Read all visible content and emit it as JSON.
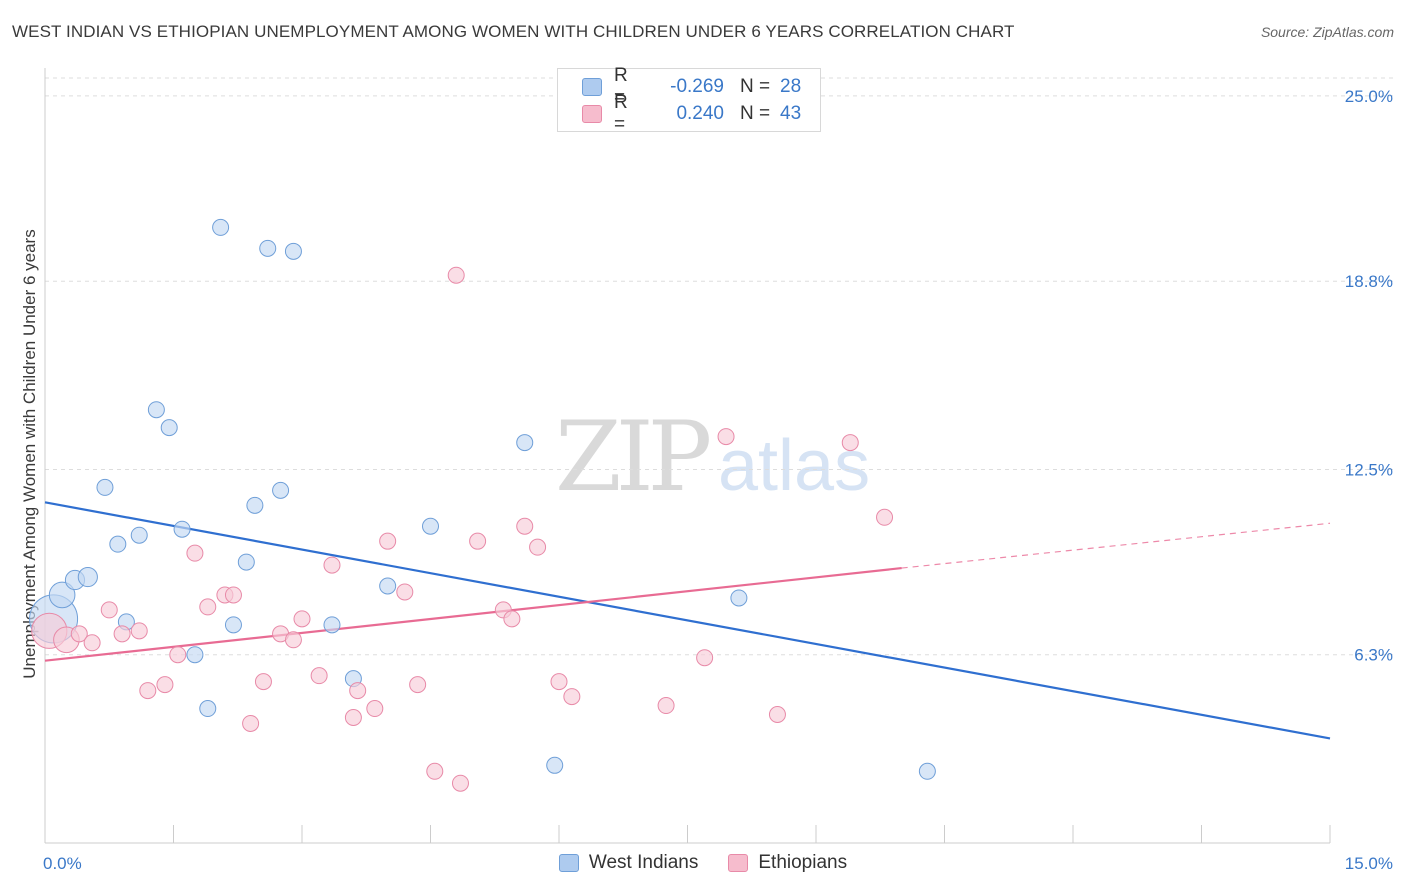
{
  "title": "WEST INDIAN VS ETHIOPIAN UNEMPLOYMENT AMONG WOMEN WITH CHILDREN UNDER 6 YEARS CORRELATION CHART",
  "source": "Source: ZipAtlas.com",
  "watermark": {
    "zip": "ZIP",
    "atlas": "atlas"
  },
  "legend": {
    "rows": [
      {
        "r_label": "R =",
        "r_value": "-0.269",
        "n_label": "N =",
        "n_value": "28",
        "color": "#aecbef",
        "border": "#6f9fd8"
      },
      {
        "r_label": "R =",
        "r_value": "0.240",
        "n_label": "N =",
        "n_value": "43",
        "color": "#f6bccd",
        "border": "#e88aa8"
      }
    ]
  },
  "bottom_legend": [
    {
      "label": "West Indians",
      "color": "#aecbef",
      "border": "#6f9fd8"
    },
    {
      "label": "Ethiopians",
      "color": "#f6bccd",
      "border": "#e88aa8"
    }
  ],
  "chart_data": {
    "type": "scatter",
    "title": "WEST INDIAN VS ETHIOPIAN UNEMPLOYMENT AMONG WOMEN WITH CHILDREN UNDER 6 YEARS CORRELATION CHART",
    "xlabel": "",
    "ylabel": "Unemployment Among Women with Children Under 6 years",
    "xlim": [
      0,
      15
    ],
    "ylim": [
      0,
      25.6
    ],
    "x_tick_labels": [
      "0.0%",
      "15.0%"
    ],
    "y_ticks": [
      6.3,
      12.5,
      18.8,
      25.0
    ],
    "y_tick_labels": [
      "6.3%",
      "12.5%",
      "18.8%",
      "25.0%"
    ],
    "grid": "horizontal dashed",
    "legend_position": "top-center",
    "series": [
      {
        "name": "West Indians",
        "color": "#6f9fd8",
        "fill": "#c3d8f3",
        "line_color": "#2f6fd0",
        "trend": {
          "x": [
            0,
            15
          ],
          "y": [
            11.4,
            3.5
          ]
        },
        "points": [
          {
            "x": 0.1,
            "y": 7.5,
            "s": 3
          },
          {
            "x": 0.2,
            "y": 8.3,
            "s": 1.6
          },
          {
            "x": 0.35,
            "y": 8.8,
            "s": 1.2
          },
          {
            "x": 0.5,
            "y": 8.9,
            "s": 1.2
          },
          {
            "x": 0.7,
            "y": 11.9
          },
          {
            "x": 0.85,
            "y": 10.0
          },
          {
            "x": 0.95,
            "y": 7.4
          },
          {
            "x": 1.1,
            "y": 10.3
          },
          {
            "x": 1.3,
            "y": 14.5
          },
          {
            "x": 1.45,
            "y": 13.9
          },
          {
            "x": 1.6,
            "y": 10.5
          },
          {
            "x": 1.75,
            "y": 6.3
          },
          {
            "x": 1.9,
            "y": 4.5
          },
          {
            "x": 2.05,
            "y": 20.6
          },
          {
            "x": 2.2,
            "y": 7.3
          },
          {
            "x": 2.35,
            "y": 9.4
          },
          {
            "x": 2.45,
            "y": 11.3
          },
          {
            "x": 2.6,
            "y": 19.9
          },
          {
            "x": 2.75,
            "y": 11.8
          },
          {
            "x": 2.9,
            "y": 19.8
          },
          {
            "x": 3.35,
            "y": 7.3
          },
          {
            "x": 3.6,
            "y": 5.5
          },
          {
            "x": 4.0,
            "y": 8.6
          },
          {
            "x": 4.5,
            "y": 10.6
          },
          {
            "x": 5.6,
            "y": 13.4
          },
          {
            "x": 5.95,
            "y": 2.6
          },
          {
            "x": 8.1,
            "y": 8.2
          },
          {
            "x": 10.3,
            "y": 2.4
          }
        ]
      },
      {
        "name": "Ethiopians",
        "color": "#e88aa8",
        "fill": "#f8cdd9",
        "line_color": "#e86b93",
        "trend": {
          "x": [
            0,
            10.0
          ],
          "y": [
            6.1,
            9.2
          ]
        },
        "trend_dashed": {
          "x": [
            10.0,
            15.0
          ],
          "y": [
            9.2,
            10.7
          ]
        },
        "points": [
          {
            "x": 0.05,
            "y": 7.1,
            "s": 2.2
          },
          {
            "x": 0.25,
            "y": 6.8,
            "s": 1.6
          },
          {
            "x": 0.4,
            "y": 7.0
          },
          {
            "x": 0.55,
            "y": 6.7
          },
          {
            "x": 0.75,
            "y": 7.8
          },
          {
            "x": 0.9,
            "y": 7.0
          },
          {
            "x": 1.1,
            "y": 7.1
          },
          {
            "x": 1.2,
            "y": 5.1
          },
          {
            "x": 1.4,
            "y": 5.3
          },
          {
            "x": 1.55,
            "y": 6.3
          },
          {
            "x": 1.75,
            "y": 9.7
          },
          {
            "x": 1.9,
            "y": 7.9
          },
          {
            "x": 2.1,
            "y": 8.3
          },
          {
            "x": 2.2,
            "y": 8.3
          },
          {
            "x": 2.4,
            "y": 4.0
          },
          {
            "x": 2.55,
            "y": 5.4
          },
          {
            "x": 2.75,
            "y": 7.0
          },
          {
            "x": 2.9,
            "y": 6.8
          },
          {
            "x": 3.0,
            "y": 7.5
          },
          {
            "x": 3.2,
            "y": 5.6
          },
          {
            "x": 3.35,
            "y": 9.3
          },
          {
            "x": 3.6,
            "y": 4.2
          },
          {
            "x": 3.65,
            "y": 5.1
          },
          {
            "x": 3.85,
            "y": 4.5
          },
          {
            "x": 4.0,
            "y": 10.1
          },
          {
            "x": 4.2,
            "y": 8.4
          },
          {
            "x": 4.35,
            "y": 5.3
          },
          {
            "x": 4.55,
            "y": 2.4
          },
          {
            "x": 4.8,
            "y": 19.0
          },
          {
            "x": 4.85,
            "y": 2.0
          },
          {
            "x": 5.05,
            "y": 10.1
          },
          {
            "x": 5.35,
            "y": 7.8
          },
          {
            "x": 5.45,
            "y": 7.5
          },
          {
            "x": 5.6,
            "y": 10.6
          },
          {
            "x": 5.75,
            "y": 9.9
          },
          {
            "x": 6.0,
            "y": 5.4
          },
          {
            "x": 6.15,
            "y": 4.9
          },
          {
            "x": 7.25,
            "y": 4.6
          },
          {
            "x": 7.7,
            "y": 6.2
          },
          {
            "x": 7.95,
            "y": 13.6
          },
          {
            "x": 8.55,
            "y": 4.3
          },
          {
            "x": 9.4,
            "y": 13.4
          },
          {
            "x": 9.8,
            "y": 10.9
          }
        ]
      }
    ]
  }
}
